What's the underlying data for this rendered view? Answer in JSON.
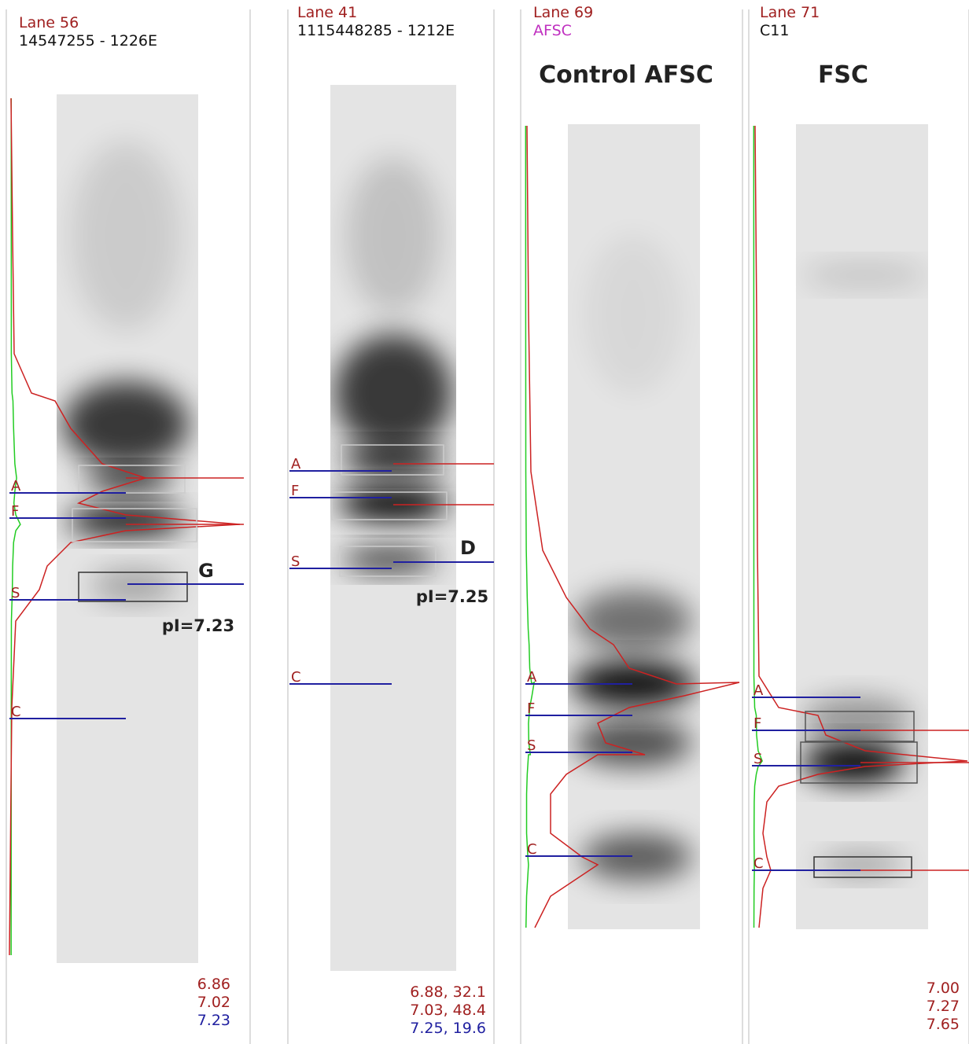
{
  "lanes": [
    {
      "lane": "Lane 56",
      "sample": "14547255 - 1226E",
      "markers": [
        "A",
        "F",
        "S",
        "C"
      ],
      "annotation": "G",
      "pi": "pI=7.23",
      "values": [
        "6.86",
        "7.02",
        "7.23"
      ]
    },
    {
      "lane": "Lane 41",
      "sample": "1115448285 - 1212E",
      "markers": [
        "A",
        "F",
        "S",
        "C"
      ],
      "annotation": "D",
      "pi": "pI=7.25",
      "values": [
        "6.88,  32.1",
        "7.03,  48.4",
        "7.25,  19.6"
      ]
    },
    {
      "lane": "Lane 69",
      "sample": "AFSC",
      "heading": "Control AFSC",
      "markers": [
        "A",
        "F",
        "S",
        "C"
      ]
    },
    {
      "lane": "Lane 71",
      "sample": "C11",
      "heading": "FSC",
      "markers": [
        "A",
        "F",
        "S",
        "C"
      ],
      "values": [
        "7.00",
        "7.27",
        "7.65"
      ]
    }
  ]
}
